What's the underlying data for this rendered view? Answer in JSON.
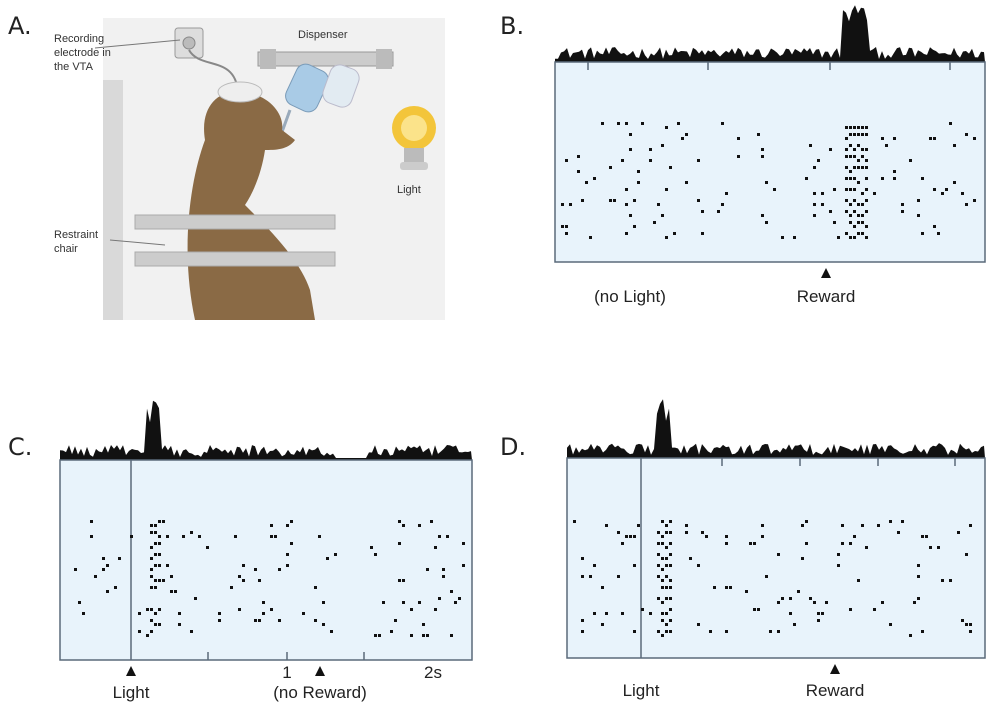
{
  "panel_a": {
    "label": "A.",
    "recording": [
      "Recording",
      "electrode in",
      "the VTA"
    ],
    "dispenser": "Dispenser",
    "light": "Light",
    "chair": [
      "Restraint",
      "chair"
    ]
  },
  "panel_b": {
    "label": "B.",
    "left_label": "(no Light)",
    "event_label": "Reward"
  },
  "panel_c": {
    "label": "C.",
    "cue_label": "Light",
    "tick_label": "1",
    "event_label": "(no Reward)",
    "time_label": "2s"
  },
  "panel_d": {
    "label": "D.",
    "cue_label": "Light",
    "event_label": "Reward"
  }
}
